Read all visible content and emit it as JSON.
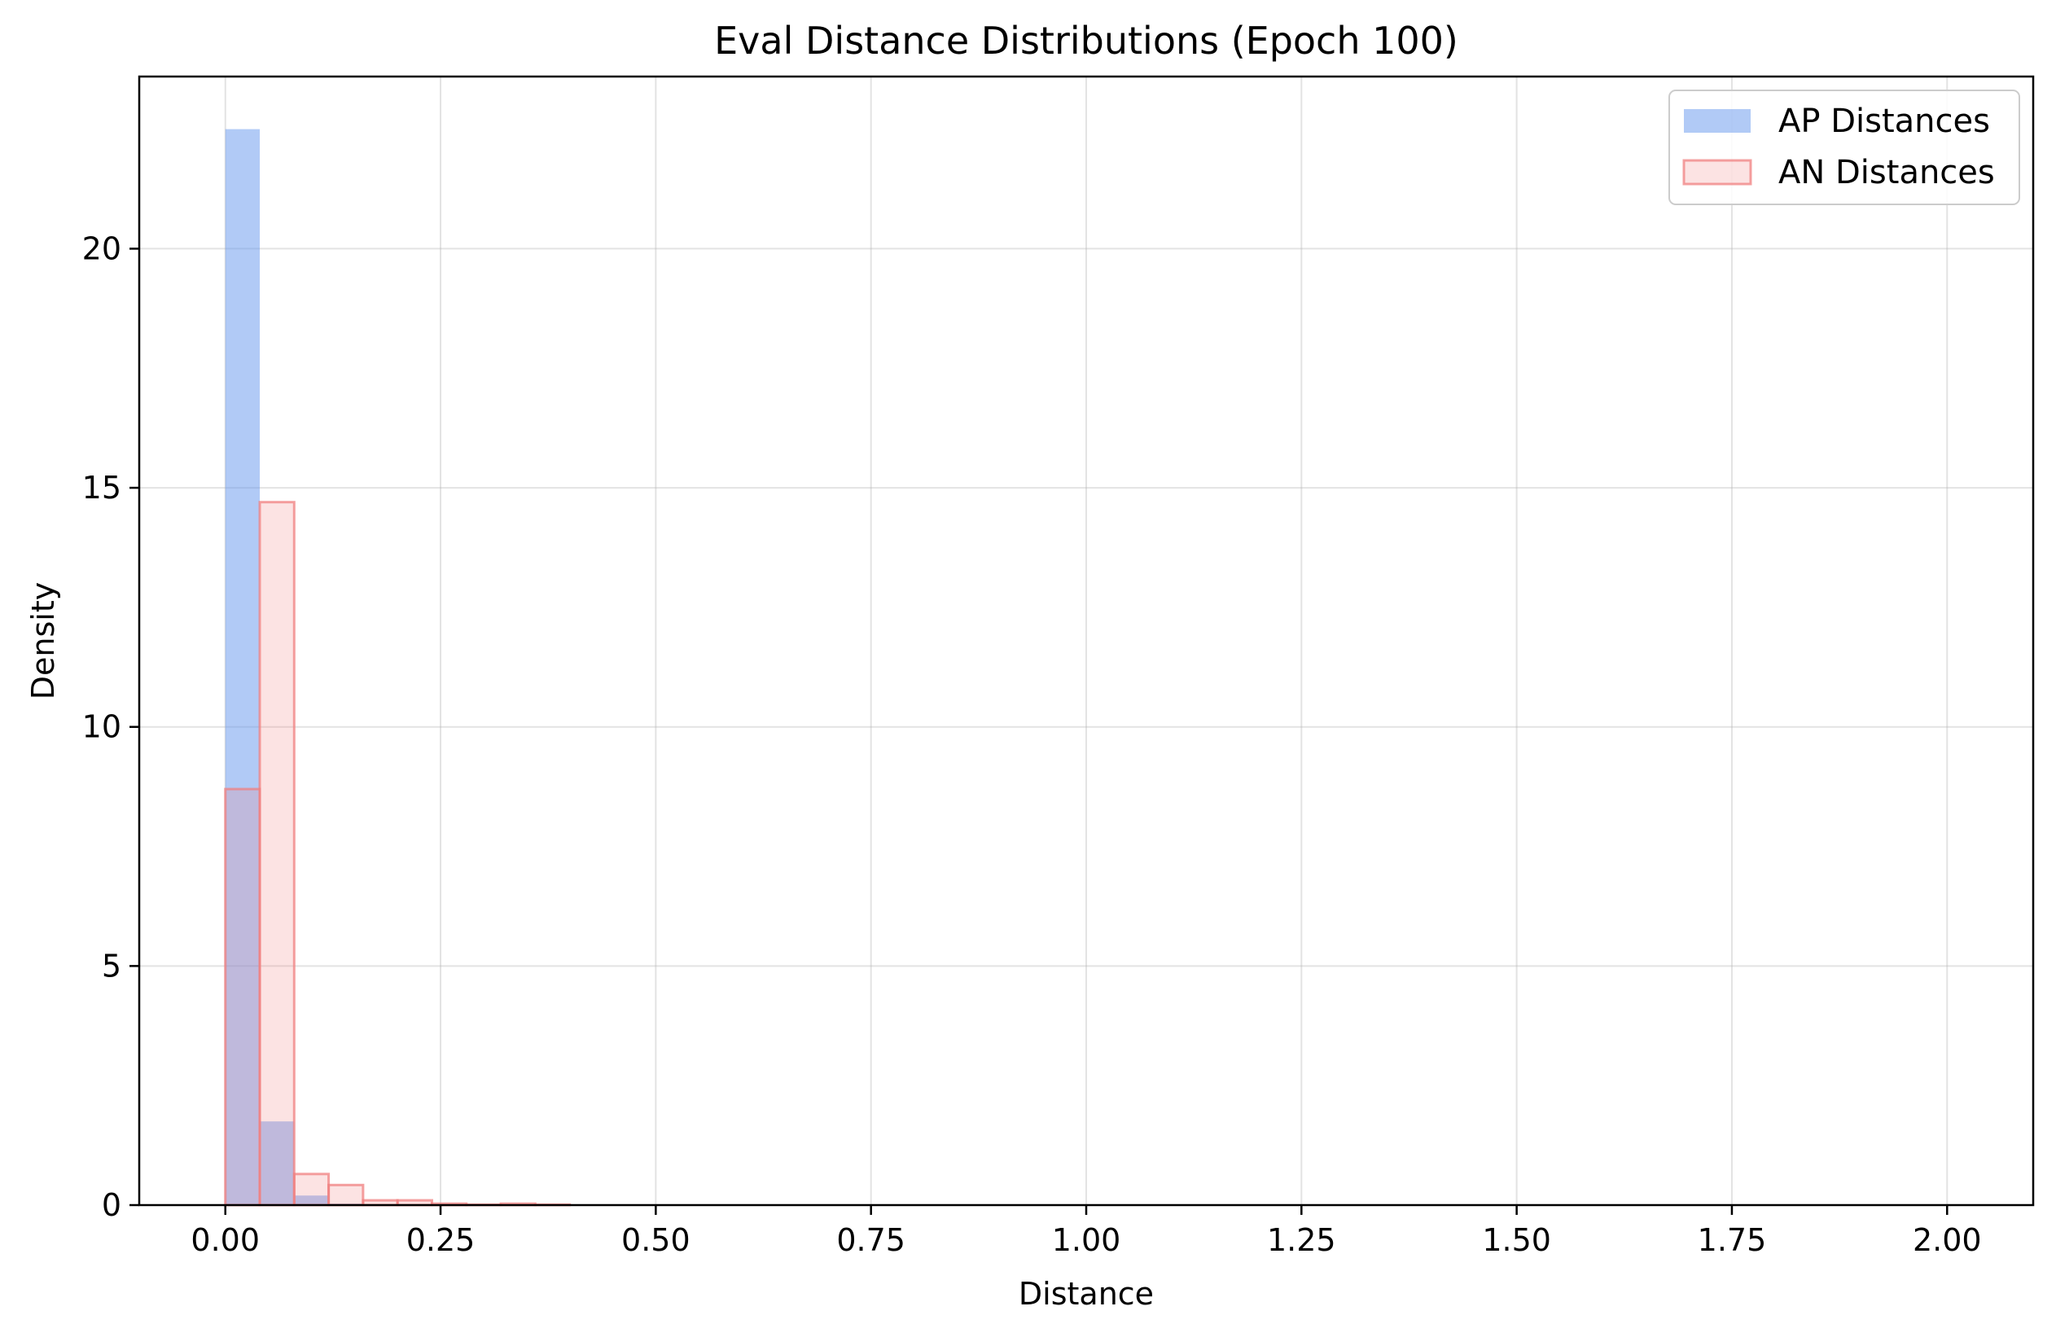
{
  "chart_data": {
    "type": "histogram",
    "title": "Eval Distance Distributions (Epoch 100)",
    "xlabel": "Distance",
    "ylabel": "Density",
    "xlim": [
      -0.1,
      2.1
    ],
    "ylim": [
      0,
      23.6
    ],
    "x_ticks": [
      0.0,
      0.25,
      0.5,
      0.75,
      1.0,
      1.25,
      1.5,
      1.75,
      2.0
    ],
    "x_tick_labels": [
      "0.00",
      "0.25",
      "0.50",
      "0.75",
      "1.00",
      "1.25",
      "1.50",
      "1.75",
      "2.00"
    ],
    "y_ticks": [
      0,
      5,
      10,
      15,
      20
    ],
    "y_tick_labels": [
      "0",
      "5",
      "10",
      "15",
      "20"
    ],
    "grid": true,
    "legend_position": "top-right",
    "bin_edges": [
      0.0,
      0.04,
      0.08,
      0.12,
      0.16,
      0.2,
      0.24,
      0.28,
      0.32,
      0.36,
      0.4,
      0.44,
      0.48,
      0.52,
      0.56,
      0.6,
      0.64,
      0.68,
      0.72,
      0.76,
      0.8,
      0.84,
      0.88,
      0.92,
      0.96,
      1.0,
      1.04,
      1.08,
      1.12,
      1.16,
      1.2,
      1.24,
      1.28,
      1.32,
      1.36,
      1.4,
      1.44,
      1.48,
      1.52,
      1.56,
      1.6,
      1.64,
      1.68,
      1.72,
      1.76,
      1.8,
      1.84,
      1.88,
      1.92,
      1.96,
      2.0
    ],
    "series": [
      {
        "name": "AP Distances",
        "color": "#6495ED",
        "style": "filled",
        "values": [
          22.5,
          1.75,
          0.2,
          0.03,
          0.01,
          0.01,
          0,
          0,
          0,
          0,
          0,
          0,
          0,
          0,
          0,
          0,
          0,
          0,
          0,
          0,
          0,
          0,
          0,
          0,
          0,
          0,
          0,
          0,
          0,
          0,
          0,
          0,
          0,
          0,
          0,
          0,
          0,
          0,
          0,
          0,
          0,
          0,
          0,
          0,
          0,
          0,
          0,
          0,
          0,
          0
        ]
      },
      {
        "name": "AN Distances",
        "color": "#F08080",
        "style": "outlined",
        "values": [
          8.7,
          14.7,
          0.65,
          0.42,
          0.1,
          0.1,
          0.03,
          0.01,
          0.03,
          0.01,
          0,
          0,
          0,
          0,
          0,
          0,
          0,
          0,
          0,
          0,
          0,
          0,
          0,
          0,
          0,
          0,
          0,
          0,
          0,
          0,
          0,
          0,
          0,
          0,
          0,
          0,
          0,
          0,
          0,
          0,
          0,
          0,
          0,
          0,
          0,
          0,
          0,
          0,
          0,
          0
        ]
      }
    ]
  }
}
